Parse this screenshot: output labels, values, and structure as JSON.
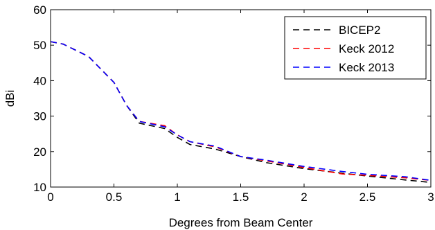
{
  "chart_data": {
    "type": "line",
    "xlabel": "Degrees from Beam Center",
    "ylabel": "dBi",
    "xlim": [
      0,
      3
    ],
    "ylim": [
      10,
      60
    ],
    "xticks": [
      0,
      0.5,
      1,
      1.5,
      2,
      2.5,
      3
    ],
    "xtick_labels": [
      "0",
      "0.5",
      "1",
      "1.5",
      "2",
      "2.5",
      "3"
    ],
    "yticks": [
      10,
      20,
      30,
      40,
      50,
      60
    ],
    "ytick_labels": [
      "10",
      "20",
      "30",
      "40",
      "50",
      "60"
    ],
    "grid": false,
    "legend_position": "top-right",
    "series": [
      {
        "name": "BICEP2",
        "color": "#000000",
        "dash": "dashed",
        "x": [
          0,
          0.1,
          0.3,
          0.5,
          0.6,
          0.7,
          0.9,
          1.0,
          1.1,
          1.3,
          1.5,
          1.7,
          2.0,
          2.3,
          2.5,
          2.8,
          3.0
        ],
        "y": [
          51,
          50.3,
          46.8,
          39.5,
          33,
          28,
          26.5,
          24,
          22,
          20.7,
          18.6,
          16.9,
          15.2,
          13.9,
          13.1,
          12,
          11.3
        ]
      },
      {
        "name": "Keck 2012",
        "color": "#ff0000",
        "dash": "dashed",
        "x": [
          0,
          0.1,
          0.3,
          0.5,
          0.6,
          0.7,
          0.9,
          1.0,
          1.1,
          1.3,
          1.5,
          1.7,
          2.0,
          2.3,
          2.5,
          2.8,
          3.0
        ],
        "y": [
          51,
          50.3,
          46.8,
          39.5,
          33,
          28.5,
          27.3,
          24.7,
          22.8,
          21.3,
          18.6,
          17.4,
          15.5,
          13.7,
          13.3,
          12.6,
          11.9
        ]
      },
      {
        "name": "Keck 2013",
        "color": "#0000ff",
        "dash": "dashed",
        "x": [
          0,
          0.1,
          0.3,
          0.5,
          0.6,
          0.7,
          0.9,
          1.0,
          1.1,
          1.3,
          1.5,
          1.7,
          2.0,
          2.3,
          2.5,
          2.8,
          3.0
        ],
        "y": [
          51,
          50.3,
          46.8,
          39.5,
          33,
          28.5,
          27.0,
          24.7,
          22.8,
          21.5,
          18.6,
          17.6,
          15.8,
          14.4,
          13.6,
          12.9,
          11.9
        ]
      }
    ]
  }
}
